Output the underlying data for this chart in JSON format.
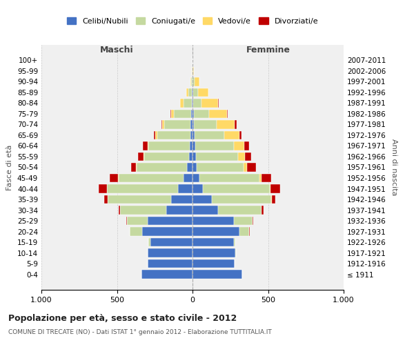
{
  "age_groups": [
    "100+",
    "95-99",
    "90-94",
    "85-89",
    "80-84",
    "75-79",
    "70-74",
    "65-69",
    "60-64",
    "55-59",
    "50-54",
    "45-49",
    "40-44",
    "35-39",
    "30-34",
    "25-29",
    "20-24",
    "15-19",
    "10-14",
    "5-9",
    "0-4"
  ],
  "birth_years": [
    "≤ 1911",
    "1912-1916",
    "1917-1921",
    "1922-1926",
    "1927-1931",
    "1932-1936",
    "1937-1941",
    "1942-1946",
    "1947-1951",
    "1952-1956",
    "1957-1961",
    "1962-1966",
    "1967-1971",
    "1972-1976",
    "1977-1981",
    "1982-1986",
    "1987-1991",
    "1992-1996",
    "1997-2001",
    "2002-2006",
    "2007-2011"
  ],
  "males": {
    "celibi": [
      0,
      0,
      1,
      3,
      5,
      10,
      12,
      15,
      20,
      25,
      35,
      60,
      95,
      140,
      175,
      295,
      335,
      280,
      295,
      295,
      340
    ],
    "coniugati": [
      0,
      2,
      8,
      25,
      55,
      115,
      175,
      220,
      270,
      295,
      335,
      430,
      470,
      420,
      305,
      140,
      80,
      10,
      2,
      0,
      0
    ],
    "vedovi": [
      0,
      1,
      4,
      15,
      20,
      15,
      12,
      10,
      8,
      5,
      3,
      2,
      2,
      0,
      0,
      0,
      0,
      0,
      0,
      0,
      0
    ],
    "divorziati": [
      0,
      0,
      0,
      0,
      2,
      5,
      8,
      10,
      30,
      35,
      35,
      55,
      55,
      25,
      10,
      5,
      2,
      0,
      0,
      0,
      0
    ]
  },
  "females": {
    "nubili": [
      0,
      0,
      2,
      5,
      6,
      8,
      10,
      12,
      18,
      22,
      28,
      45,
      70,
      130,
      170,
      275,
      310,
      275,
      285,
      280,
      330
    ],
    "coniugate": [
      0,
      3,
      12,
      30,
      55,
      100,
      150,
      200,
      255,
      280,
      310,
      400,
      440,
      390,
      285,
      120,
      65,
      8,
      2,
      0,
      0
    ],
    "vedove": [
      0,
      5,
      30,
      70,
      110,
      120,
      120,
      100,
      70,
      45,
      25,
      10,
      5,
      3,
      2,
      2,
      0,
      0,
      0,
      0,
      0
    ],
    "divorziate": [
      0,
      0,
      0,
      2,
      3,
      5,
      10,
      12,
      30,
      40,
      55,
      65,
      65,
      25,
      12,
      5,
      2,
      0,
      0,
      0,
      0
    ]
  },
  "colors": {
    "celibi": "#4472c4",
    "coniugati": "#c5d9a0",
    "vedovi": "#ffd966",
    "divorziati": "#c00000"
  },
  "title": "Popolazione per età, sesso e stato civile - 2012",
  "subtitle": "COMUNE DI TRECATE (NO) - Dati ISTAT 1° gennaio 2012 - Elaborazione TUTTITALIA.IT",
  "xlabel_left": "Maschi",
  "xlabel_right": "Femmine",
  "ylabel_left": "Fasce di età",
  "ylabel_right": "Anni di nascita",
  "xlim": 1000,
  "background_color": "#ffffff",
  "legend_labels": [
    "Celibi/Nubili",
    "Coniugati/e",
    "Vedovi/e",
    "Divorziati/e"
  ]
}
